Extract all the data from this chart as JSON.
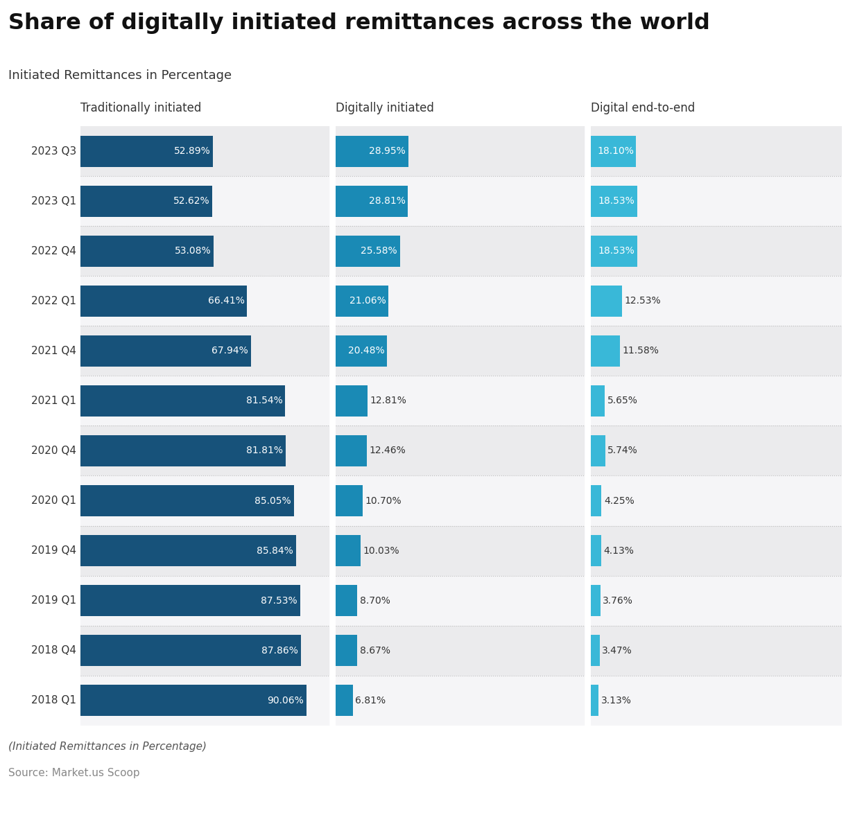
{
  "title": "Share of digitally initiated remittances across the world",
  "subtitle": "Initiated Remittances in Percentage",
  "footer_italic": "(Initiated Remittances in Percentage)",
  "footer_source": "Source: Market.us Scoop",
  "col_headers": [
    "Traditionally initiated",
    "Digitally initiated",
    "Digital end-to-end"
  ],
  "rows": [
    {
      "label": "2023 Q3",
      "trad": 52.89,
      "digit": 28.95,
      "end2end": 18.1
    },
    {
      "label": "2023 Q1",
      "trad": 52.62,
      "digit": 28.81,
      "end2end": 18.53
    },
    {
      "label": "2022 Q4",
      "trad": 53.08,
      "digit": 25.58,
      "end2end": 18.53
    },
    {
      "label": "2022 Q1",
      "trad": 66.41,
      "digit": 21.06,
      "end2end": 12.53
    },
    {
      "label": "2021 Q4",
      "trad": 67.94,
      "digit": 20.48,
      "end2end": 11.58
    },
    {
      "label": "2021 Q1",
      "trad": 81.54,
      "digit": 12.81,
      "end2end": 5.65
    },
    {
      "label": "2020 Q4",
      "trad": 81.81,
      "digit": 12.46,
      "end2end": 5.74
    },
    {
      "label": "2020 Q1",
      "trad": 85.05,
      "digit": 10.7,
      "end2end": 4.25
    },
    {
      "label": "2019 Q4",
      "trad": 85.84,
      "digit": 10.03,
      "end2end": 4.13
    },
    {
      "label": "2019 Q1",
      "trad": 87.53,
      "digit": 8.7,
      "end2end": 3.76
    },
    {
      "label": "2018 Q4",
      "trad": 87.86,
      "digit": 8.67,
      "end2end": 3.47
    },
    {
      "label": "2018 Q1",
      "trad": 90.06,
      "digit": 6.81,
      "end2end": 3.13
    }
  ],
  "color_trad": "#17527a",
  "color_digit": "#1a8ab5",
  "color_end2end": "#39b8d8",
  "color_bg_even": "#ebebed",
  "color_bg_odd": "#f5f5f7",
  "color_separator": "#bbbbbb"
}
